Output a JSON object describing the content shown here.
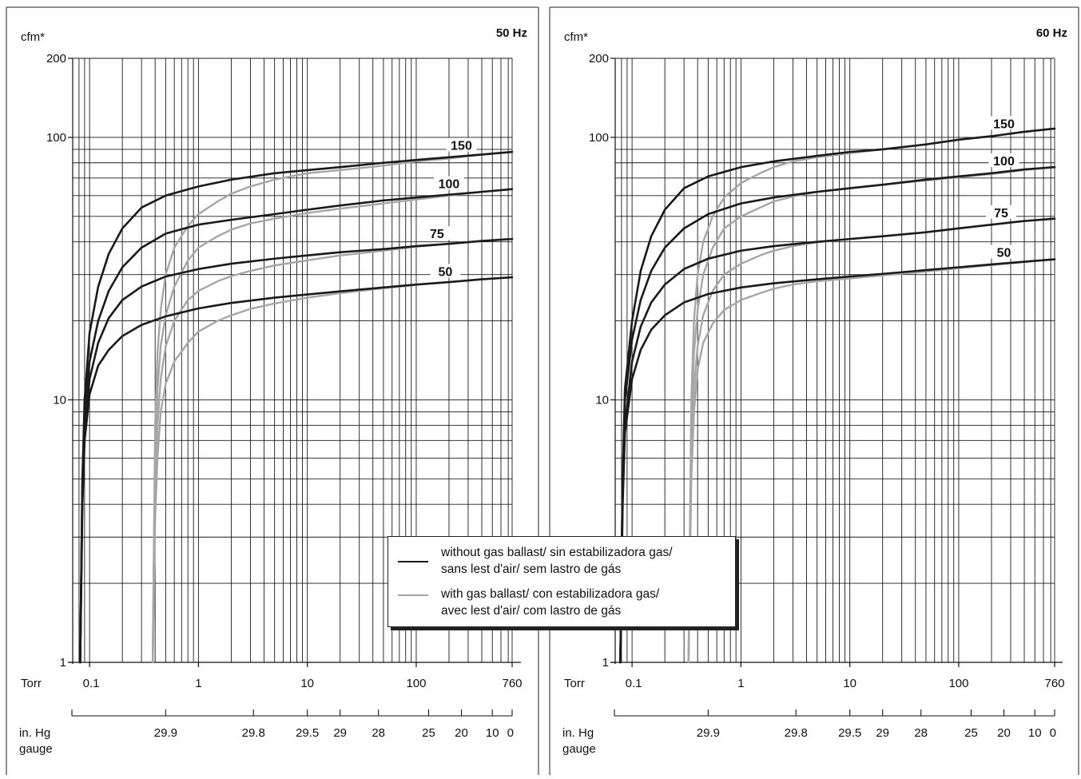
{
  "chart_data": [
    {
      "type": "line",
      "title": "50 Hz",
      "ylabel": "cfm*",
      "xlabel_torr": "Torr",
      "xlabel_inhg": "in. Hg gauge",
      "x_scale": "log",
      "y_scale": "log",
      "xlim": [
        0.07,
        760
      ],
      "ylim": [
        1,
        200
      ],
      "x_ticks": [
        "0.1",
        "1",
        "10",
        "100",
        "760"
      ],
      "y_ticks": [
        "1",
        "10",
        "100",
        "200"
      ],
      "inhg_ticks": [
        {
          "label": "29.9",
          "torr": 0.5
        },
        {
          "label": "29.8",
          "torr": 3.2
        },
        {
          "label": "29.5",
          "torr": 10.0
        },
        {
          "label": "29",
          "torr": 20.0
        },
        {
          "label": "28",
          "torr": 45.0
        },
        {
          "label": "25",
          "torr": 130.0
        },
        {
          "label": "20",
          "torr": 260.0
        },
        {
          "label": "10",
          "torr": 500.0
        },
        {
          "label": "0",
          "torr": 760.0
        }
      ],
      "series": [
        {
          "name": "150",
          "style": "without",
          "x": [
            0.082,
            0.086,
            0.09,
            0.1,
            0.12,
            0.15,
            0.2,
            0.3,
            0.5,
            1,
            2,
            5,
            10,
            20,
            50,
            100,
            200,
            400,
            760
          ],
          "y": [
            1,
            5,
            10,
            18,
            27,
            36,
            45,
            54,
            60,
            65,
            69,
            73,
            75,
            77,
            80,
            82,
            84,
            86,
            88
          ]
        },
        {
          "name": "150",
          "style": "with",
          "x": [
            0.38,
            0.4,
            0.42,
            0.45,
            0.5,
            0.6,
            0.8,
            1,
            1.5,
            2,
            3,
            5,
            10,
            20,
            50,
            100,
            200,
            400,
            760
          ],
          "y": [
            1,
            8,
            15,
            22,
            30,
            38,
            46,
            51,
            57,
            61,
            65,
            69,
            73,
            75,
            78,
            81,
            83,
            86,
            88
          ]
        },
        {
          "name": "100",
          "style": "without",
          "x": [
            0.082,
            0.086,
            0.09,
            0.1,
            0.12,
            0.15,
            0.2,
            0.3,
            0.5,
            1,
            2,
            5,
            10,
            20,
            50,
            100,
            200,
            400,
            760
          ],
          "y": [
            1,
            5,
            9,
            14,
            20,
            26,
            32,
            38,
            43,
            46.5,
            48.5,
            51,
            53,
            55,
            57.5,
            59,
            60.5,
            62,
            63.5
          ]
        },
        {
          "name": "100",
          "style": "with",
          "x": [
            0.38,
            0.4,
            0.42,
            0.45,
            0.5,
            0.6,
            0.8,
            1,
            1.5,
            2,
            3,
            5,
            10,
            20,
            50,
            100,
            200,
            400,
            760
          ],
          "y": [
            1,
            6,
            11,
            16,
            21,
            27,
            34,
            38,
            42,
            44.5,
            47,
            49,
            51.5,
            53.5,
            56,
            58,
            60,
            62,
            63.5
          ]
        },
        {
          "name": "75",
          "style": "without",
          "x": [
            0.082,
            0.086,
            0.09,
            0.1,
            0.12,
            0.15,
            0.2,
            0.3,
            0.5,
            1,
            2,
            5,
            10,
            20,
            50,
            100,
            200,
            400,
            760
          ],
          "y": [
            1,
            4.5,
            7.5,
            12,
            16.5,
            20.5,
            24,
            27,
            29.5,
            31.5,
            33,
            34.5,
            35.5,
            36.5,
            37.5,
            38.5,
            39.3,
            40.3,
            41
          ]
        },
        {
          "name": "75",
          "style": "with",
          "x": [
            0.38,
            0.4,
            0.42,
            0.45,
            0.5,
            0.6,
            0.8,
            1,
            1.5,
            2,
            3,
            5,
            10,
            20,
            50,
            100,
            200,
            400,
            760
          ],
          "y": [
            1,
            4.5,
            8,
            12,
            16,
            20,
            24,
            26,
            28.3,
            29.6,
            31,
            32.5,
            34,
            35.5,
            37,
            38.3,
            39.3,
            40.3,
            41
          ]
        },
        {
          "name": "50",
          "style": "without",
          "x": [
            0.082,
            0.086,
            0.09,
            0.1,
            0.12,
            0.15,
            0.2,
            0.3,
            0.5,
            1,
            2,
            5,
            10,
            20,
            50,
            100,
            200,
            400,
            760
          ],
          "y": [
            1,
            4,
            7,
            10.5,
            13.5,
            15.5,
            17.5,
            19.3,
            20.8,
            22.3,
            23.4,
            24.5,
            25.2,
            25.9,
            26.8,
            27.5,
            28.1,
            28.8,
            29.3
          ]
        },
        {
          "name": "50",
          "style": "with",
          "x": [
            0.38,
            0.4,
            0.42,
            0.45,
            0.5,
            0.6,
            0.8,
            1,
            1.5,
            2,
            3,
            5,
            10,
            20,
            50,
            100,
            200,
            400,
            760
          ],
          "y": [
            1,
            3.5,
            6,
            9,
            11.5,
            14,
            16.5,
            18.2,
            20,
            21,
            22.2,
            23.3,
            24.5,
            25.5,
            26.6,
            27.4,
            28.1,
            28.8,
            29.3
          ]
        }
      ]
    },
    {
      "type": "line",
      "title": "60 Hz",
      "ylabel": "cfm*",
      "xlabel_torr": "Torr",
      "xlabel_inhg": "in. Hg gauge",
      "x_scale": "log",
      "y_scale": "log",
      "xlim": [
        0.07,
        760
      ],
      "ylim": [
        1,
        200
      ],
      "x_ticks": [
        "0.1",
        "1",
        "10",
        "100",
        "760"
      ],
      "y_ticks": [
        "1",
        "10",
        "100",
        "200"
      ],
      "inhg_ticks": [
        {
          "label": "29.9",
          "torr": 0.5
        },
        {
          "label": "29.8",
          "torr": 3.2
        },
        {
          "label": "29.5",
          "torr": 10.0
        },
        {
          "label": "29",
          "torr": 20.0
        },
        {
          "label": "28",
          "torr": 45.0
        },
        {
          "label": "25",
          "torr": 130.0
        },
        {
          "label": "20",
          "torr": 260.0
        },
        {
          "label": "10",
          "torr": 500.0
        },
        {
          "label": "0",
          "torr": 760.0
        }
      ],
      "series": [
        {
          "name": "150",
          "style": "without",
          "x": [
            0.078,
            0.082,
            0.086,
            0.1,
            0.12,
            0.15,
            0.2,
            0.3,
            0.5,
            1,
            2,
            5,
            10,
            20,
            50,
            100,
            200,
            400,
            760
          ],
          "y": [
            1,
            5,
            11,
            20,
            31,
            42,
            53,
            64,
            71,
            77,
            81,
            85,
            88,
            90,
            94,
            98,
            101,
            105,
            108
          ]
        },
        {
          "name": "150",
          "style": "with",
          "x": [
            0.33,
            0.35,
            0.37,
            0.4,
            0.45,
            0.55,
            0.7,
            1,
            1.5,
            2,
            3,
            5,
            10,
            20,
            50,
            100,
            200,
            400,
            760
          ],
          "y": [
            1,
            10,
            20,
            30,
            40,
            50,
            59,
            67,
            73,
            77,
            81,
            84,
            87,
            90,
            94,
            98,
            101,
            105,
            108
          ]
        },
        {
          "name": "100",
          "style": "without",
          "x": [
            0.078,
            0.082,
            0.086,
            0.1,
            0.12,
            0.15,
            0.2,
            0.3,
            0.5,
            1,
            2,
            5,
            10,
            20,
            50,
            100,
            200,
            400,
            760
          ],
          "y": [
            1,
            5,
            10,
            17,
            24,
            31,
            38,
            45,
            51,
            56,
            59,
            62,
            64,
            66,
            69,
            71,
            73,
            75.5,
            77
          ]
        },
        {
          "name": "100",
          "style": "with",
          "x": [
            0.33,
            0.35,
            0.37,
            0.4,
            0.45,
            0.55,
            0.7,
            1,
            1.5,
            2,
            3,
            5,
            10,
            20,
            50,
            100,
            200,
            400,
            760
          ],
          "y": [
            1,
            8,
            15,
            22,
            30,
            38,
            45,
            50,
            54,
            57,
            59.5,
            62,
            64,
            66,
            68.5,
            70.5,
            72.5,
            75,
            77
          ]
        },
        {
          "name": "75",
          "style": "without",
          "x": [
            0.078,
            0.082,
            0.086,
            0.1,
            0.12,
            0.15,
            0.2,
            0.3,
            0.5,
            1,
            2,
            5,
            10,
            20,
            50,
            100,
            200,
            400,
            760
          ],
          "y": [
            1,
            4.5,
            8,
            14,
            19,
            23.5,
            27.5,
            31.5,
            34.5,
            37,
            38.5,
            40,
            41,
            42,
            43.5,
            45,
            46.5,
            48,
            49
          ]
        },
        {
          "name": "75",
          "style": "with",
          "x": [
            0.33,
            0.35,
            0.37,
            0.4,
            0.45,
            0.55,
            0.7,
            1,
            1.5,
            2,
            3,
            5,
            10,
            20,
            50,
            100,
            200,
            400,
            760
          ],
          "y": [
            1,
            6,
            11,
            16,
            21,
            26,
            30,
            33,
            35.5,
            37,
            38.5,
            39.8,
            41,
            42,
            43.5,
            45,
            46.5,
            48,
            49
          ]
        },
        {
          "name": "50",
          "style": "without",
          "x": [
            0.078,
            0.082,
            0.086,
            0.1,
            0.12,
            0.15,
            0.2,
            0.3,
            0.5,
            1,
            2,
            5,
            10,
            20,
            50,
            100,
            200,
            400,
            760
          ],
          "y": [
            1,
            4,
            7.5,
            12,
            15.5,
            18.5,
            21,
            23.5,
            25.3,
            26.8,
            27.8,
            28.8,
            29.5,
            30.2,
            31.2,
            32,
            32.8,
            33.6,
            34.3
          ]
        },
        {
          "name": "50",
          "style": "with",
          "x": [
            0.33,
            0.35,
            0.37,
            0.4,
            0.45,
            0.55,
            0.7,
            1,
            1.5,
            2,
            3,
            5,
            10,
            20,
            50,
            100,
            200,
            400,
            760
          ],
          "y": [
            1,
            5,
            9,
            13,
            16.5,
            19.5,
            22,
            24,
            25.5,
            26.5,
            27.5,
            28.3,
            29,
            29.8,
            30.8,
            31.7,
            32.6,
            33.5,
            34.3
          ]
        }
      ]
    }
  ],
  "legend": {
    "without_line1": "without gas ballast/  sin estabilizadora gas/",
    "without_line2": "sans lest d'air/  sem lastro de gás",
    "with_line1": "with gas ballast/  con estabilizadora gas/",
    "with_line2": "avec lest d'air/  com lastro de gás"
  },
  "colors": {
    "without_gas_ballast": "#1a1a1a",
    "with_gas_ballast": "#a6a6a6",
    "grid": "#1a1a1a"
  }
}
